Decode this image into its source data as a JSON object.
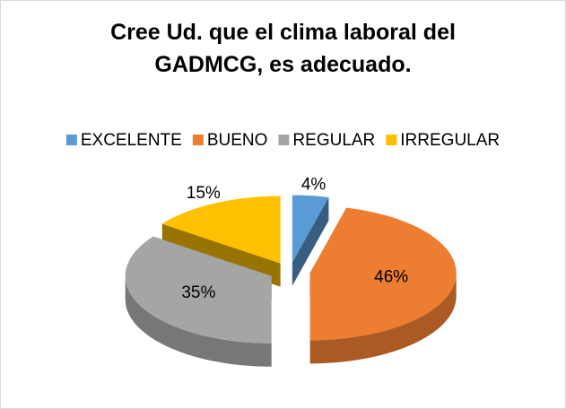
{
  "chart_data": {
    "type": "pie",
    "title": "Cree Ud. que el clima laboral del GADMCG, es adecuado.",
    "categories": [
      "EXCELENTE",
      "BUENO",
      "REGULAR",
      "IRREGULAR"
    ],
    "values": [
      4,
      46,
      35,
      15
    ],
    "value_labels": [
      "4%",
      "46%",
      "35%",
      "15%"
    ],
    "colors": [
      "#5b9bd5",
      "#ed7d31",
      "#a5a5a5",
      "#ffc000"
    ],
    "legend": "top"
  }
}
